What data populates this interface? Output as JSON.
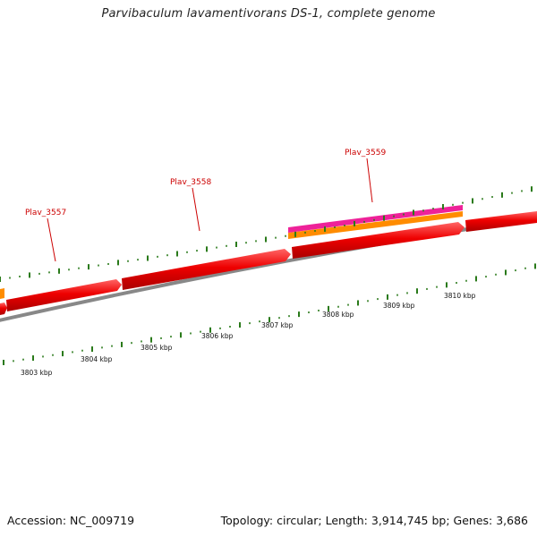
{
  "title": "Parvibaculum lavamentivorans DS-1, complete genome",
  "footer": {
    "accession": "Accession: NC_009719",
    "topology": "Topology: circular; Length: 3,914,745 bp; Genes: 3,686"
  },
  "gene_labels": [
    "Plav_3557",
    "Plav_3558",
    "Plav_3559"
  ],
  "kbp_labels": [
    "3803 kbp",
    "3804 kbp",
    "3805 kbp",
    "3806 kbp",
    "3807 kbp",
    "3808 kbp",
    "3809 kbp",
    "3810 kbp"
  ],
  "colors": {
    "gene": "#ee0000",
    "backbone": "#888888",
    "orange_feature": "#ff8c00",
    "pink_feature": "#ee2299",
    "gc_tick": "#2a7a1a",
    "label": "#cc0000"
  }
}
